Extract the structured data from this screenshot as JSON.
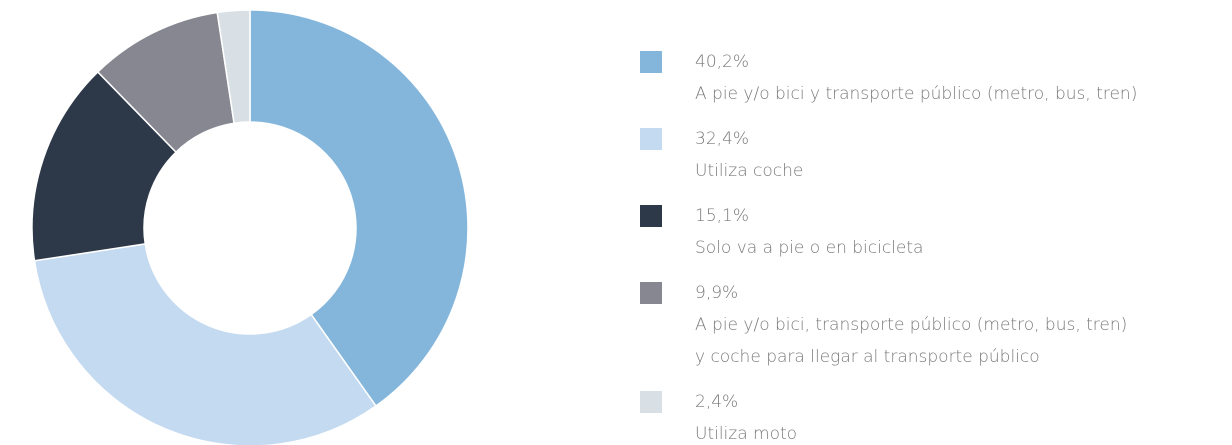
{
  "chart_data": {
    "type": "donut",
    "categories": [
      "A pie y/o bici y transporte público (metro, bus, tren)",
      "Utiliza coche",
      "Solo va a pie o en bicicleta",
      "A pie y/o bici, transporte público (metro, bus, tren)\ny coche para llegar al transporte público",
      "Utiliza moto"
    ],
    "values": [
      40.2,
      32.4,
      15.1,
      9.9,
      2.4
    ],
    "value_labels": [
      "40,2%",
      "32,4%",
      "15,1%",
      "9,9%",
      "2,4%"
    ],
    "colors": [
      "#84b6dc",
      "#c4daf0",
      "#2d3849",
      "#878791",
      "#d9e0e5"
    ]
  }
}
